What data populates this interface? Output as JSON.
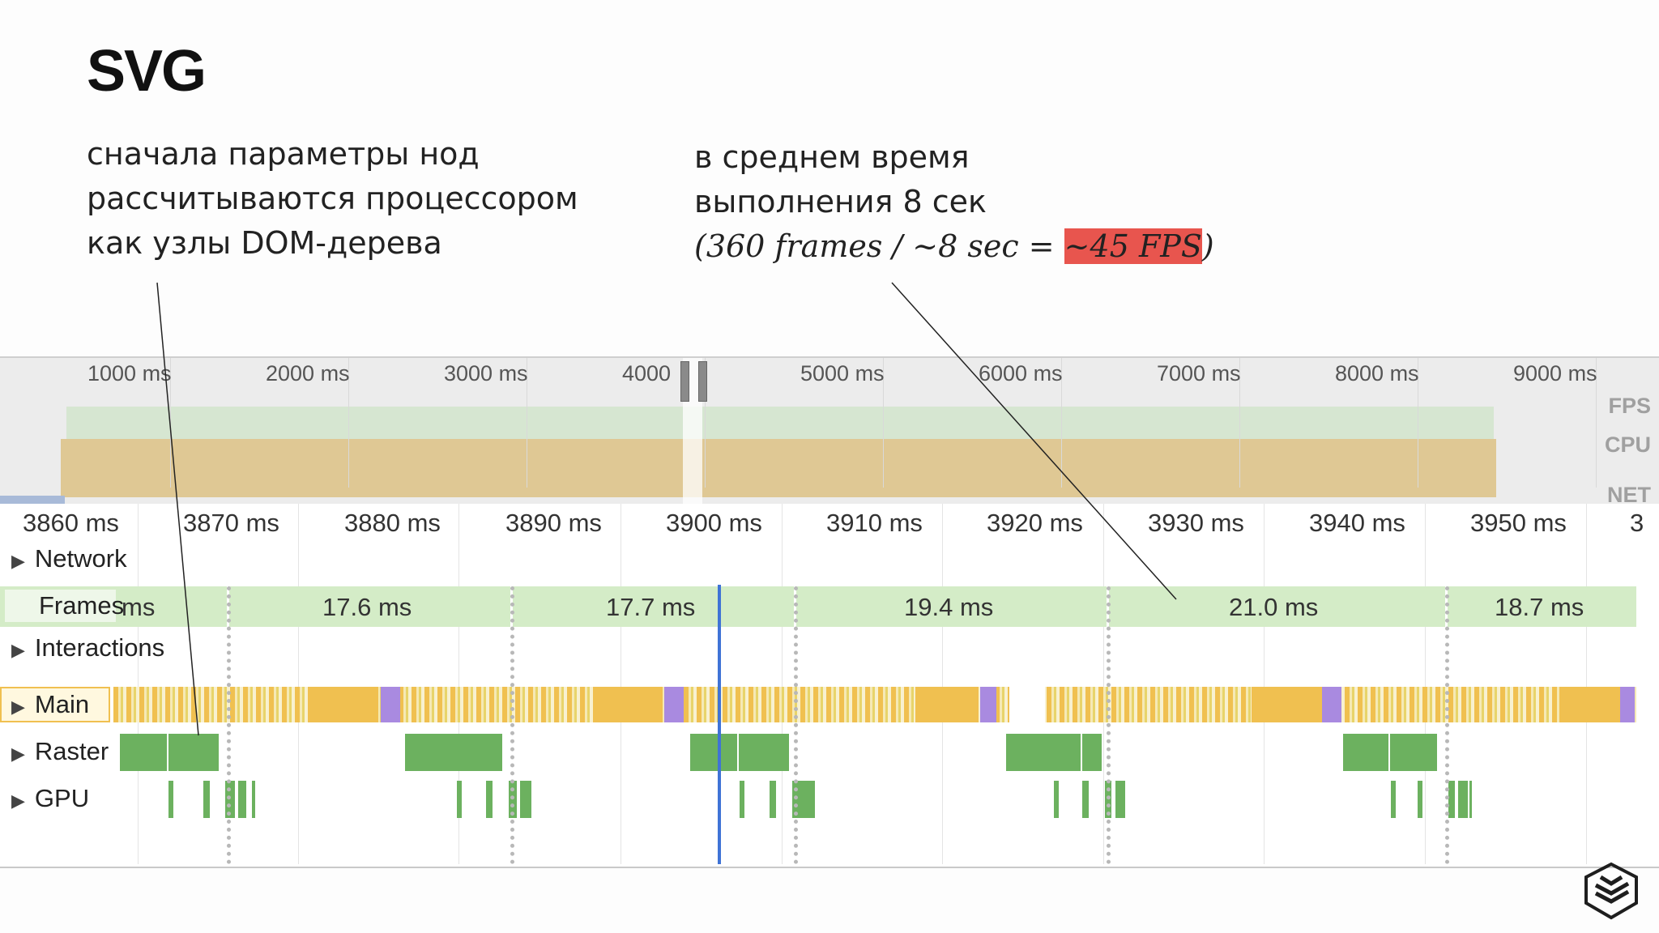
{
  "slide": {
    "title": "SVG",
    "left_note": [
      "сначала параметры нод",
      "рассчитываются процессором",
      "как узлы DOM-дерева"
    ],
    "right_note": {
      "line1": "в среднем время",
      "line2": "выполнения 8 сек",
      "formula_prefix": "(360 frames / ~8 sec = ",
      "formula_highlight": "~45 FPS",
      "formula_suffix": ")"
    }
  },
  "overview": {
    "ticks": [
      "1000 ms",
      "2000 ms",
      "3000 ms",
      "4000",
      "5000 ms",
      "6000 ms",
      "7000 ms",
      "8000 ms",
      "9000 ms"
    ],
    "rows": [
      "FPS",
      "CPU",
      "NET"
    ],
    "colors": {
      "fps": "#d6e6d1",
      "cpu": "#dfc894",
      "net": "#a8bad8"
    }
  },
  "timeline": {
    "ticks": [
      "3860 ms",
      "3870 ms",
      "3880 ms",
      "3890 ms",
      "3900 ms",
      "3910 ms",
      "3920 ms",
      "3930 ms",
      "3940 ms",
      "3950 ms",
      "3"
    ],
    "tracks": {
      "network": "Network",
      "frames": "Frames",
      "interactions": "Interactions",
      "main": "Main",
      "raster": "Raster",
      "gpu": "GPU"
    },
    "frames": [
      "ms",
      "17.6 ms",
      "17.7 ms",
      "19.4 ms",
      "21.0 ms",
      "18.7 ms"
    ],
    "colors": {
      "frames": "#d4ecc7",
      "scripting": "#f0c050",
      "rendering": "#a98ae0",
      "raster": "#6cb15f",
      "cursor": "#3f73d6"
    }
  },
  "icons": {
    "logo": "stack-layers-icon",
    "collapse": "triangle-right-icon"
  }
}
